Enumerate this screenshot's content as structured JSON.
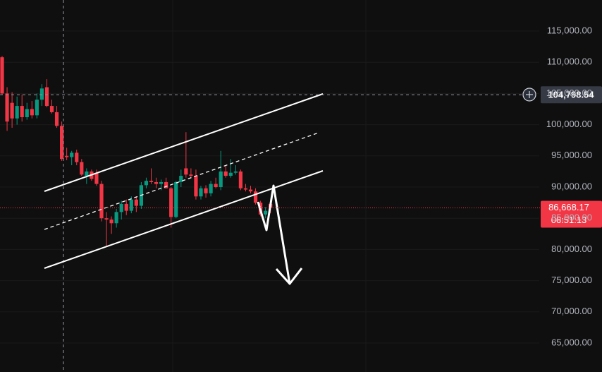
{
  "chart_data": {
    "type": "candlestick",
    "open": [
      110800,
      105000,
      103500,
      101000,
      103000,
      101200,
      102500,
      101500,
      104000,
      106000,
      103000,
      102000,
      99800,
      95000,
      94800,
      95500,
      94000,
      91800,
      92500,
      92200,
      90500,
      85000,
      84800,
      84200,
      86000,
      87300,
      86200,
      88000,
      87000,
      90300,
      91000,
      90800,
      90500,
      90800,
      89800,
      85200,
      90800,
      93000,
      92000,
      91800,
      88500,
      89800,
      89000,
      90500,
      90000,
      92500,
      91800,
      92300,
      92500,
      89800,
      89600,
      89300,
      87500,
      85600,
      87300
    ],
    "high": [
      111000,
      106000,
      105200,
      104500,
      104800,
      103500,
      103800,
      105000,
      106500,
      107300,
      104000,
      103000,
      100500,
      96300,
      95800,
      96000,
      94500,
      93000,
      92800,
      92800,
      91000,
      86000,
      85300,
      86500,
      87800,
      88000,
      88500,
      88500,
      90800,
      91500,
      93000,
      91500,
      91200,
      91500,
      90000,
      91000,
      92800,
      98800,
      93000,
      92800,
      90200,
      90300,
      91000,
      91500,
      95800,
      93500,
      94500,
      93500,
      92800,
      90500,
      90200,
      89800,
      87800,
      86800,
      87500
    ],
    "low": [
      104800,
      99000,
      99500,
      100000,
      100500,
      100800,
      101000,
      101000,
      103000,
      102800,
      101800,
      99500,
      94200,
      94300,
      93500,
      93500,
      91800,
      90500,
      91000,
      90200,
      84500,
      80500,
      82500,
      83500,
      84800,
      85500,
      85800,
      86000,
      86500,
      89800,
      90500,
      89800,
      89500,
      89800,
      83500,
      85000,
      90000,
      91500,
      91500,
      88000,
      88000,
      88300,
      88500,
      89800,
      89500,
      91500,
      91500,
      92000,
      89500,
      89300,
      89000,
      87200,
      85300,
      85000,
      85800
    ],
    "close": [
      105000,
      100500,
      101000,
      103000,
      101200,
      102500,
      101500,
      104000,
      105800,
      103000,
      102000,
      99800,
      94500,
      94800,
      95500,
      94000,
      92000,
      92500,
      91300,
      90500,
      85000,
      84800,
      84200,
      86000,
      87300,
      86200,
      88000,
      87000,
      90300,
      91000,
      90800,
      90500,
      90800,
      89800,
      85200,
      90800,
      91800,
      92000,
      91800,
      88500,
      89800,
      89000,
      90500,
      90000,
      92500,
      91800,
      92300,
      92500,
      89800,
      89600,
      89300,
      87500,
      85600,
      86200,
      86668.17
    ],
    "up_color": "#089981",
    "down_color": "#f23645",
    "ylim": [
      60360,
      119980
    ],
    "yticks": [
      {
        "value": 65000,
        "label": "65,000.00"
      },
      {
        "value": 70000,
        "label": "70,000.00"
      },
      {
        "value": 75000,
        "label": "75,000.00"
      },
      {
        "value": 80000,
        "label": "80,000.00"
      },
      {
        "value": 85000,
        "label": "85,000.00"
      },
      {
        "value": 90000,
        "label": "90,000.00"
      },
      {
        "value": 95000,
        "label": "95,000.00"
      },
      {
        "value": 100000,
        "label": "100,000.00"
      },
      {
        "value": 105000,
        "label": "105,000.00"
      },
      {
        "value": 110000,
        "label": "110,000.00"
      },
      {
        "value": 115000,
        "label": "115,000.00"
      }
    ],
    "crosshair_price": {
      "value": 104798.54,
      "label": "104,798.54"
    },
    "last_price": {
      "value": 86668.17,
      "label": "86,668.17"
    },
    "countdown": "06:51:13"
  }
}
